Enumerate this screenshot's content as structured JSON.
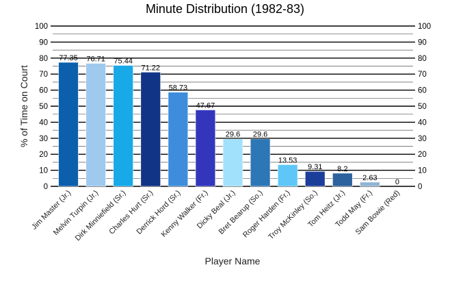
{
  "chart_data": {
    "type": "bar",
    "title": "Minute Distribution (1982-83)",
    "xlabel": "Player Name",
    "ylabel": "% of Time on Court",
    "ylim": [
      0,
      100
    ],
    "yticks": [
      0,
      10,
      20,
      30,
      40,
      50,
      60,
      70,
      80,
      90,
      100
    ],
    "grid": true,
    "categories": [
      "Jim Master (Jr.)",
      "Melvin Turpin (Jr.)",
      "Dirk Minniefield (Sr.)",
      "Charles Hurt (Sr.)",
      "Derrick Hord (Sr.)",
      "Kenny Walker (Fr.)",
      "Dicky Beal (Jr.)",
      "Bret Bearup (So.)",
      "Roger Harden (Fr.)",
      "Troy McKinley (So.)",
      "Tom Heitz (Jr.)",
      "Todd May (Fr.)",
      "Sam Bowie (Red)"
    ],
    "values": [
      77.35,
      76.71,
      75.44,
      71.22,
      58.73,
      47.67,
      29.6,
      29.6,
      13.53,
      9.31,
      8.2,
      2.63,
      0
    ],
    "data_labels": [
      "77.35",
      "76.71",
      "75.44",
      "71.22",
      "58.73",
      "47.67",
      "29.6",
      "29.6",
      "13.53",
      "9.31",
      "8.2",
      "2.63",
      "0"
    ],
    "colors": [
      "#0b5fad",
      "#9fcaee",
      "#17a9e8",
      "#123487",
      "#3e8ddc",
      "#3336bd",
      "#a2e1fb",
      "#2e77b7",
      "#5ec7f7",
      "#1b3e9a",
      "#2c629d",
      "#8fb4d6",
      "#c7e1f2"
    ]
  }
}
